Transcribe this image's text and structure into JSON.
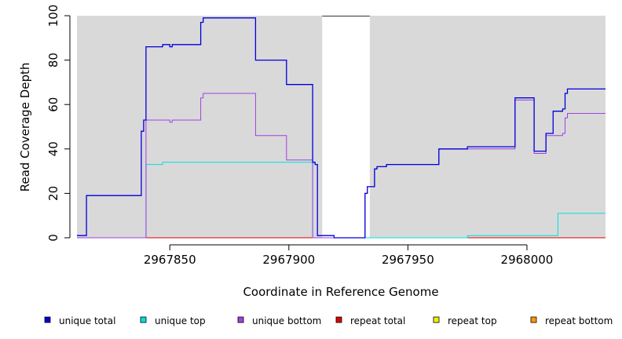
{
  "chart_data": {
    "type": "line",
    "title": "",
    "xlabel": "Coordinate in Reference Genome",
    "ylabel": "Read Coverage Depth",
    "xlim": [
      2967811,
      2968033
    ],
    "ylim": [
      0,
      100
    ],
    "x_ticks": [
      2967850,
      2967900,
      2967950,
      2968000
    ],
    "x_tick_labels": [
      "2967850",
      "2967900",
      "2967950",
      "2968000"
    ],
    "y_ticks": [
      0,
      20,
      40,
      60,
      80,
      100
    ],
    "y_tick_labels": [
      "0",
      "20",
      "40",
      "60",
      "80",
      "100"
    ],
    "background_color": "#d9d9d9",
    "gap_region": [
      2967914,
      2967934
    ],
    "legend_position": "bottom",
    "series": [
      {
        "name": "unique total",
        "color": "#0000dd",
        "points": [
          [
            2967811,
            1
          ],
          [
            2967815,
            1
          ],
          [
            2967815,
            19
          ],
          [
            2967838,
            19
          ],
          [
            2967838,
            48
          ],
          [
            2967839,
            48
          ],
          [
            2967839,
            53
          ],
          [
            2967840,
            53
          ],
          [
            2967840,
            86
          ],
          [
            2967847,
            86
          ],
          [
            2967847,
            87
          ],
          [
            2967850,
            87
          ],
          [
            2967850,
            86
          ],
          [
            2967851,
            86
          ],
          [
            2967851,
            87
          ],
          [
            2967863,
            87
          ],
          [
            2967863,
            97
          ],
          [
            2967864,
            97
          ],
          [
            2967864,
            99
          ],
          [
            2967886,
            99
          ],
          [
            2967886,
            80
          ],
          [
            2967899,
            80
          ],
          [
            2967899,
            69
          ],
          [
            2967910,
            69
          ],
          [
            2967910,
            34
          ],
          [
            2967911,
            34
          ],
          [
            2967911,
            33
          ],
          [
            2967912,
            33
          ],
          [
            2967912,
            1
          ],
          [
            2967919,
            1
          ],
          [
            2967919,
            0
          ],
          [
            2967932,
            0
          ],
          [
            2967932,
            20
          ],
          [
            2967933,
            20
          ],
          [
            2967933,
            23
          ],
          [
            2967936,
            23
          ],
          [
            2967936,
            31
          ],
          [
            2967937,
            31
          ],
          [
            2967937,
            32
          ],
          [
            2967941,
            32
          ],
          [
            2967941,
            33
          ],
          [
            2967963,
            33
          ],
          [
            2967963,
            40
          ],
          [
            2967975,
            40
          ],
          [
            2967975,
            41
          ],
          [
            2967995,
            41
          ],
          [
            2967995,
            63
          ],
          [
            2968003,
            63
          ],
          [
            2968003,
            39
          ],
          [
            2968008,
            39
          ],
          [
            2968008,
            47
          ],
          [
            2968011,
            47
          ],
          [
            2968011,
            57
          ],
          [
            2968015,
            57
          ],
          [
            2968015,
            58
          ],
          [
            2968016,
            58
          ],
          [
            2968016,
            65
          ],
          [
            2968017,
            65
          ],
          [
            2968017,
            67
          ],
          [
            2968033,
            67
          ]
        ]
      },
      {
        "name": "unique top",
        "color": "#00e0e0",
        "points": [
          [
            2967811,
            0
          ],
          [
            2967840,
            0
          ],
          [
            2967840,
            33
          ],
          [
            2967847,
            33
          ],
          [
            2967847,
            34
          ],
          [
            2967910,
            34
          ],
          [
            2967910,
            0
          ],
          [
            2967975,
            0
          ],
          [
            2967975,
            1
          ],
          [
            2968013,
            1
          ],
          [
            2968013,
            11
          ],
          [
            2968033,
            11
          ]
        ]
      },
      {
        "name": "unique bottom",
        "color": "#a040e0",
        "points": [
          [
            2967811,
            0
          ],
          [
            2967840,
            0
          ],
          [
            2967840,
            53
          ],
          [
            2967850,
            53
          ],
          [
            2967850,
            52
          ],
          [
            2967851,
            52
          ],
          [
            2967851,
            53
          ],
          [
            2967863,
            53
          ],
          [
            2967863,
            63
          ],
          [
            2967864,
            63
          ],
          [
            2967864,
            65
          ],
          [
            2967886,
            65
          ],
          [
            2967886,
            46
          ],
          [
            2967899,
            46
          ],
          [
            2967899,
            35
          ],
          [
            2967910,
            35
          ],
          [
            2967910,
            0
          ],
          [
            2967932,
            0
          ],
          [
            2967932,
            20
          ],
          [
            2967933,
            20
          ],
          [
            2967933,
            23
          ],
          [
            2967936,
            23
          ],
          [
            2967936,
            31
          ],
          [
            2967937,
            31
          ],
          [
            2967937,
            32
          ],
          [
            2967941,
            32
          ],
          [
            2967941,
            33
          ],
          [
            2967963,
            33
          ],
          [
            2967963,
            40
          ],
          [
            2967975,
            40
          ],
          [
            2967995,
            40
          ],
          [
            2967995,
            62
          ],
          [
            2968003,
            62
          ],
          [
            2968003,
            38
          ],
          [
            2968008,
            38
          ],
          [
            2968008,
            46
          ],
          [
            2968015,
            46
          ],
          [
            2968015,
            47
          ],
          [
            2968016,
            47
          ],
          [
            2968016,
            54
          ],
          [
            2968017,
            54
          ],
          [
            2968017,
            56
          ],
          [
            2968033,
            56
          ]
        ]
      },
      {
        "name": "repeat total",
        "color": "#e00000",
        "points": [
          [
            2967811,
            0
          ],
          [
            2968033,
            0
          ]
        ]
      },
      {
        "name": "repeat top",
        "color": "#f0f000",
        "points": [
          [
            2967811,
            0
          ],
          [
            2968033,
            0
          ]
        ]
      },
      {
        "name": "repeat bottom",
        "color": "#ff9900",
        "points": [
          [
            2967811,
            0
          ],
          [
            2968033,
            0
          ]
        ]
      }
    ]
  }
}
